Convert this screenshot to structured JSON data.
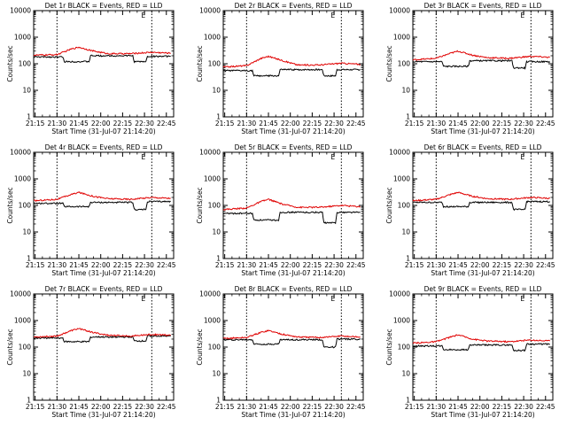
{
  "colors": {
    "events": "#000000",
    "lld": "#e00000",
    "axis": "#000000",
    "background": "#ffffff"
  },
  "shared": {
    "xlabel": "Start Time (31-Jul-07 21:14:20)",
    "ylabel": "Counts/sec",
    "x_ticks": [
      "21:15",
      "21:30",
      "21:45",
      "22:00",
      "22:15",
      "22:30",
      "22:45"
    ],
    "y_ticks": [
      "1",
      "10",
      "100",
      "1000",
      "10000"
    ],
    "marker_label": "E",
    "dotted_lines": [
      "21:30",
      "22:35"
    ]
  },
  "chart_data": [
    {
      "type": "line",
      "title": "Det 1r BLACK = Events, RED = LLD",
      "yscale": "log",
      "ylim": [
        1,
        10000
      ],
      "xlim": [
        "21:14",
        "22:50"
      ],
      "series": [
        {
          "name": "BLACK = Events",
          "color": "#000000",
          "x": [
            "21:14",
            "21:34",
            "21:35",
            "21:52",
            "21:53",
            "22:22",
            "22:23",
            "22:31",
            "22:32",
            "22:48"
          ],
          "values": [
            180,
            180,
            120,
            120,
            200,
            200,
            120,
            120,
            190,
            190
          ]
        },
        {
          "name": "RED = LLD",
          "color": "#e00000",
          "x": [
            "21:14",
            "21:30",
            "21:40",
            "21:45",
            "21:55",
            "22:05",
            "22:20",
            "22:35",
            "22:48"
          ],
          "values": [
            210,
            220,
            360,
            420,
            300,
            240,
            240,
            270,
            250
          ]
        }
      ]
    },
    {
      "type": "line",
      "title": "Det 2r BLACK = Events, RED = LLD",
      "yscale": "log",
      "ylim": [
        1,
        10000
      ],
      "xlim": [
        "21:14",
        "22:50"
      ],
      "series": [
        {
          "name": "BLACK = Events",
          "color": "#000000",
          "x": [
            "21:14",
            "21:34",
            "21:35",
            "21:52",
            "21:53",
            "22:22",
            "22:23",
            "22:31",
            "22:32",
            "22:48"
          ],
          "values": [
            55,
            55,
            35,
            35,
            60,
            60,
            35,
            35,
            60,
            60
          ]
        },
        {
          "name": "RED = LLD",
          "color": "#e00000",
          "x": [
            "21:14",
            "21:30",
            "21:40",
            "21:45",
            "21:55",
            "22:05",
            "22:20",
            "22:35",
            "22:48"
          ],
          "values": [
            75,
            85,
            160,
            190,
            130,
            90,
            90,
            105,
            95
          ]
        }
      ]
    },
    {
      "type": "line",
      "title": "Det 3r BLACK = Events, RED = LLD",
      "yscale": "log",
      "ylim": [
        1,
        10000
      ],
      "xlim": [
        "21:14",
        "22:50"
      ],
      "series": [
        {
          "name": "BLACK = Events",
          "color": "#000000",
          "x": [
            "21:14",
            "21:34",
            "21:35",
            "21:52",
            "21:53",
            "22:22",
            "22:23",
            "22:31",
            "22:32",
            "22:48"
          ],
          "values": [
            120,
            120,
            80,
            80,
            130,
            130,
            70,
            70,
            120,
            120
          ]
        },
        {
          "name": "RED = LLD",
          "color": "#e00000",
          "x": [
            "21:14",
            "21:30",
            "21:40",
            "21:45",
            "21:55",
            "22:05",
            "22:20",
            "22:35",
            "22:48"
          ],
          "values": [
            140,
            160,
            250,
            300,
            210,
            170,
            160,
            190,
            175
          ]
        }
      ]
    },
    {
      "type": "line",
      "title": "Det 4r BLACK = Events, RED = LLD",
      "yscale": "log",
      "ylim": [
        1,
        10000
      ],
      "xlim": [
        "21:14",
        "22:50"
      ],
      "series": [
        {
          "name": "BLACK = Events",
          "color": "#000000",
          "x": [
            "21:14",
            "21:34",
            "21:35",
            "21:52",
            "21:53",
            "22:22",
            "22:23",
            "22:31",
            "22:32",
            "22:48"
          ],
          "values": [
            120,
            120,
            90,
            90,
            130,
            130,
            70,
            70,
            140,
            140
          ]
        },
        {
          "name": "RED = LLD",
          "color": "#e00000",
          "x": [
            "21:14",
            "21:30",
            "21:40",
            "21:45",
            "21:55",
            "22:05",
            "22:20",
            "22:35",
            "22:48"
          ],
          "values": [
            150,
            170,
            260,
            310,
            220,
            180,
            170,
            200,
            185
          ]
        }
      ]
    },
    {
      "type": "line",
      "title": "Det 5r BLACK = Events, RED = LLD",
      "yscale": "log",
      "ylim": [
        1,
        10000
      ],
      "xlim": [
        "21:14",
        "22:50"
      ],
      "series": [
        {
          "name": "BLACK = Events",
          "color": "#000000",
          "x": [
            "21:14",
            "21:34",
            "21:35",
            "21:52",
            "21:53",
            "22:22",
            "22:23",
            "22:31",
            "22:32",
            "22:48"
          ],
          "values": [
            50,
            50,
            28,
            28,
            55,
            55,
            22,
            22,
            55,
            55
          ]
        },
        {
          "name": "RED = LLD",
          "color": "#e00000",
          "x": [
            "21:14",
            "21:30",
            "21:40",
            "21:45",
            "21:55",
            "22:05",
            "22:20",
            "22:35",
            "22:48"
          ],
          "values": [
            70,
            80,
            140,
            170,
            110,
            85,
            85,
            100,
            90
          ]
        }
      ]
    },
    {
      "type": "line",
      "title": "Det 6r BLACK = Events, RED = LLD",
      "yscale": "log",
      "ylim": [
        1,
        10000
      ],
      "xlim": [
        "21:14",
        "22:50"
      ],
      "series": [
        {
          "name": "BLACK = Events",
          "color": "#000000",
          "x": [
            "21:14",
            "21:34",
            "21:35",
            "21:52",
            "21:53",
            "22:22",
            "22:23",
            "22:31",
            "22:32",
            "22:48"
          ],
          "values": [
            130,
            130,
            90,
            90,
            130,
            130,
            70,
            70,
            140,
            140
          ]
        },
        {
          "name": "RED = LLD",
          "color": "#e00000",
          "x": [
            "21:14",
            "21:30",
            "21:40",
            "21:45",
            "21:55",
            "22:05",
            "22:20",
            "22:35",
            "22:48"
          ],
          "values": [
            150,
            170,
            260,
            310,
            220,
            180,
            170,
            200,
            185
          ]
        }
      ]
    },
    {
      "type": "line",
      "title": "Det 7r BLACK = Events, RED = LLD",
      "yscale": "log",
      "ylim": [
        1,
        10000
      ],
      "xlim": [
        "21:14",
        "22:50"
      ],
      "series": [
        {
          "name": "BLACK = Events",
          "color": "#000000",
          "x": [
            "21:14",
            "21:34",
            "21:35",
            "21:52",
            "21:53",
            "22:22",
            "22:23",
            "22:31",
            "22:32",
            "22:48"
          ],
          "values": [
            220,
            220,
            160,
            160,
            240,
            240,
            170,
            170,
            260,
            260
          ]
        },
        {
          "name": "RED = LLD",
          "color": "#e00000",
          "x": [
            "21:14",
            "21:30",
            "21:40",
            "21:45",
            "21:55",
            "22:05",
            "22:20",
            "22:35",
            "22:48"
          ],
          "values": [
            240,
            260,
            420,
            500,
            350,
            280,
            260,
            300,
            280
          ]
        }
      ]
    },
    {
      "type": "line",
      "title": "Det 8r BLACK = Events, RED = LLD",
      "yscale": "log",
      "ylim": [
        1,
        10000
      ],
      "xlim": [
        "21:14",
        "22:50"
      ],
      "series": [
        {
          "name": "BLACK = Events",
          "color": "#000000",
          "x": [
            "21:14",
            "21:34",
            "21:35",
            "21:52",
            "21:53",
            "22:22",
            "22:23",
            "22:31",
            "22:32",
            "22:48"
          ],
          "values": [
            190,
            190,
            130,
            130,
            190,
            190,
            100,
            100,
            200,
            200
          ]
        },
        {
          "name": "RED = LLD",
          "color": "#e00000",
          "x": [
            "21:14",
            "21:30",
            "21:40",
            "21:45",
            "21:55",
            "22:05",
            "22:20",
            "22:35",
            "22:48"
          ],
          "values": [
            210,
            230,
            360,
            420,
            300,
            240,
            230,
            260,
            240
          ]
        }
      ]
    },
    {
      "type": "line",
      "title": "Det 9r BLACK = Events, RED = LLD",
      "yscale": "log",
      "ylim": [
        1,
        10000
      ],
      "xlim": [
        "21:14",
        "22:50"
      ],
      "series": [
        {
          "name": "BLACK = Events",
          "color": "#000000",
          "x": [
            "21:14",
            "21:34",
            "21:35",
            "21:52",
            "21:53",
            "22:22",
            "22:23",
            "22:31",
            "22:32",
            "22:48"
          ],
          "values": [
            110,
            110,
            80,
            80,
            120,
            120,
            75,
            75,
            130,
            130
          ]
        },
        {
          "name": "RED = LLD",
          "color": "#e00000",
          "x": [
            "21:14",
            "21:30",
            "21:40",
            "21:45",
            "21:55",
            "22:05",
            "22:20",
            "22:35",
            "22:48"
          ],
          "values": [
            140,
            160,
            240,
            290,
            200,
            170,
            160,
            185,
            170
          ]
        }
      ]
    }
  ]
}
